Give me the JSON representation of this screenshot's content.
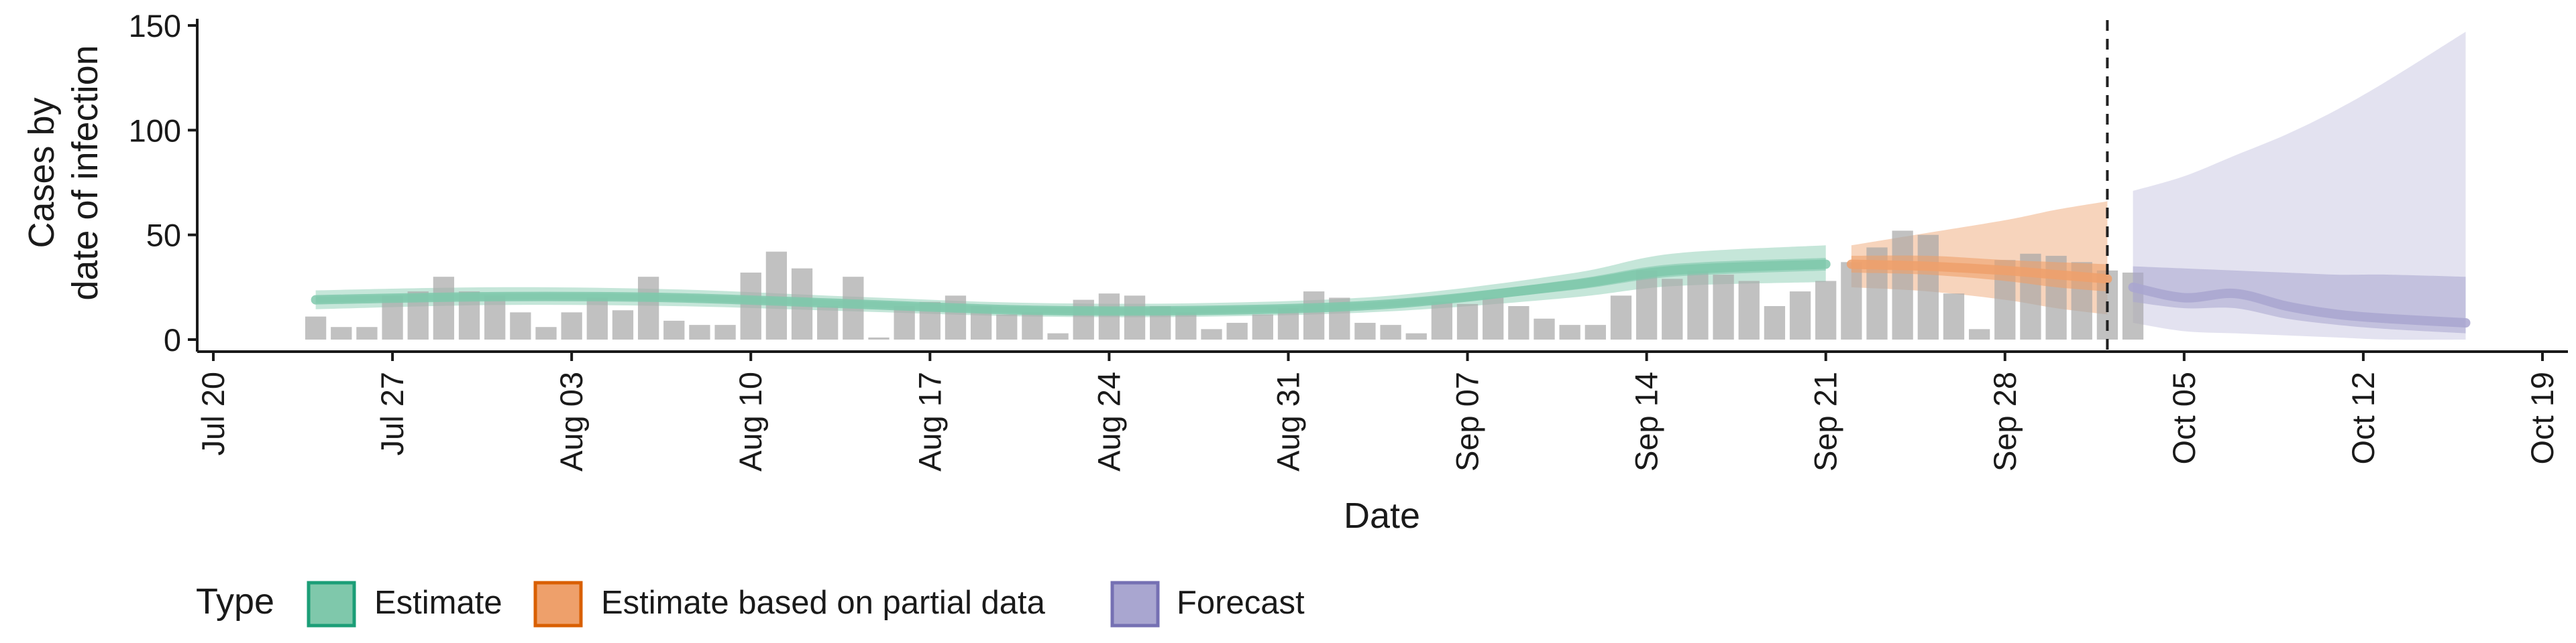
{
  "chart_data": {
    "type": "bar",
    "xlabel": "Date",
    "ylabel_lines": [
      "Cases by",
      "date of infection"
    ],
    "ylim": [
      0,
      150
    ],
    "yticks": [
      0,
      50,
      100,
      150
    ],
    "xlim": [
      "2020-07-20",
      "2020-10-19"
    ],
    "xticks": [
      {
        "date": "2020-07-20",
        "label": "Jul 20"
      },
      {
        "date": "2020-07-27",
        "label": "Jul 27"
      },
      {
        "date": "2020-08-03",
        "label": "Aug 03"
      },
      {
        "date": "2020-08-10",
        "label": "Aug 10"
      },
      {
        "date": "2020-08-17",
        "label": "Aug 17"
      },
      {
        "date": "2020-08-24",
        "label": "Aug 24"
      },
      {
        "date": "2020-08-31",
        "label": "Aug 31"
      },
      {
        "date": "2020-09-07",
        "label": "Sep 07"
      },
      {
        "date": "2020-09-14",
        "label": "Sep 14"
      },
      {
        "date": "2020-09-21",
        "label": "Sep 21"
      },
      {
        "date": "2020-09-28",
        "label": "Sep 28"
      },
      {
        "date": "2020-10-05",
        "label": "Oct 05"
      },
      {
        "date": "2020-10-12",
        "label": "Oct 12"
      },
      {
        "date": "2020-10-19",
        "label": "Oct 19"
      }
    ],
    "bars": {
      "start_date": "2020-07-24",
      "values": [
        11,
        6,
        6,
        21,
        23,
        30,
        23,
        21,
        13,
        6,
        13,
        20,
        14,
        30,
        9,
        7,
        7,
        32,
        42,
        34,
        16,
        30,
        1,
        16,
        18,
        21,
        16,
        12,
        13,
        3,
        19,
        22,
        21,
        16,
        13,
        5,
        8,
        12,
        15,
        23,
        20,
        8,
        7,
        3,
        18,
        17,
        20,
        16,
        10,
        7,
        7,
        21,
        33,
        29,
        33,
        31,
        28,
        16,
        23,
        28,
        37,
        44,
        52,
        50,
        22,
        5,
        38,
        41,
        40,
        37,
        33,
        32
      ]
    },
    "vline_date": "2020-10-02",
    "bands": [
      {
        "name": "Estimate",
        "color": "#1b9e77",
        "fill": "#7fc8ab",
        "dates": [
          "2020-07-24",
          "2020-07-31",
          "2020-08-07",
          "2020-08-14",
          "2020-08-21",
          "2020-08-28",
          "2020-09-04",
          "2020-09-11",
          "2020-09-15",
          "2020-09-21"
        ],
        "median": [
          19,
          20.5,
          20,
          17,
          14,
          14,
          17,
          26,
          33,
          36
        ],
        "inner_lo": [
          17.5,
          19,
          18.5,
          15.5,
          12.5,
          12.5,
          15.5,
          23.5,
          30,
          33
        ],
        "inner_hi": [
          20.5,
          22,
          21.5,
          18.5,
          15.5,
          15.5,
          18.5,
          28.5,
          36,
          39
        ],
        "outer_lo": [
          14.5,
          16.5,
          16,
          13.5,
          11,
          11,
          13.5,
          20,
          25.5,
          27.5
        ],
        "outer_hi": [
          23.5,
          25,
          24,
          20.5,
          17.5,
          17.5,
          21,
          31.5,
          41,
          45
        ]
      },
      {
        "name": "Estimate based on partial data",
        "color": "#d95f02",
        "fill": "#eea06b",
        "dates": [
          "2020-09-22",
          "2020-09-25",
          "2020-09-28",
          "2020-09-30",
          "2020-10-02"
        ],
        "median": [
          36,
          35,
          33,
          31,
          29
        ],
        "inner_lo": [
          32,
          31,
          28,
          25,
          23
        ],
        "inner_hi": [
          40,
          40,
          38,
          37,
          36
        ],
        "outer_lo": [
          25,
          23,
          19,
          15,
          12
        ],
        "outer_hi": [
          45,
          51,
          57,
          62,
          66
        ]
      },
      {
        "name": "Forecast",
        "color": "#7570b3",
        "fill": "#a9a6d0",
        "dates": [
          "2020-10-03",
          "2020-10-05",
          "2020-10-07",
          "2020-10-09",
          "2020-10-11",
          "2020-10-13",
          "2020-10-16"
        ],
        "median": [
          25,
          20,
          22,
          16,
          12,
          10,
          8
        ],
        "inner_lo": [
          18,
          15,
          15,
          10,
          7,
          5,
          3
        ],
        "inner_hi": [
          35,
          34,
          33,
          32,
          31,
          31,
          30
        ],
        "outer_lo": [
          8,
          4,
          3,
          2,
          1,
          0,
          0
        ],
        "outer_hi": [
          71,
          78,
          88,
          98,
          110,
          124,
          147
        ]
      }
    ],
    "legend": {
      "position": "bottom-left",
      "title": "Type",
      "items": [
        "Estimate",
        "Estimate based on partial data",
        "Forecast"
      ]
    }
  }
}
